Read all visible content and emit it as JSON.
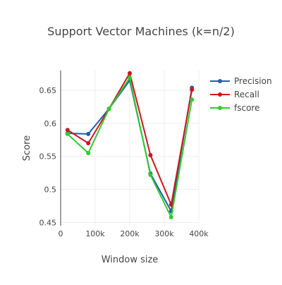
{
  "chart_data": {
    "type": "line",
    "title": "Support Vector Machines (k=n/2)",
    "xlabel": "Window size",
    "ylabel": "Score",
    "xlim": [
      0,
      400000
    ],
    "ylim": [
      0.445,
      0.68
    ],
    "x_ticks": [
      0,
      100000,
      200000,
      300000,
      400000
    ],
    "x_tick_labels": [
      "0",
      "100k",
      "200k",
      "300k",
      "400k"
    ],
    "y_ticks": [
      0.45,
      0.5,
      0.55,
      0.6,
      0.65
    ],
    "y_tick_labels": [
      "0.45",
      "0.5",
      "0.55",
      "0.6",
      "0.65"
    ],
    "grid": true,
    "legend_position": "top-right",
    "x": [
      20000,
      80000,
      140000,
      200000,
      260000,
      320000,
      380000
    ],
    "series": [
      {
        "name": "Precision",
        "color": "#1f5fa8",
        "values": [
          0.585,
          0.584,
          0.622,
          0.665,
          0.524,
          0.467,
          0.654
        ]
      },
      {
        "name": "Recall",
        "color": "#d0141e",
        "values": [
          0.59,
          0.57,
          0.622,
          0.676,
          0.552,
          0.477,
          0.651
        ]
      },
      {
        "name": "fscore",
        "color": "#2ecc2e",
        "values": [
          0.584,
          0.555,
          0.622,
          0.669,
          0.522,
          0.458,
          0.636
        ]
      }
    ]
  }
}
